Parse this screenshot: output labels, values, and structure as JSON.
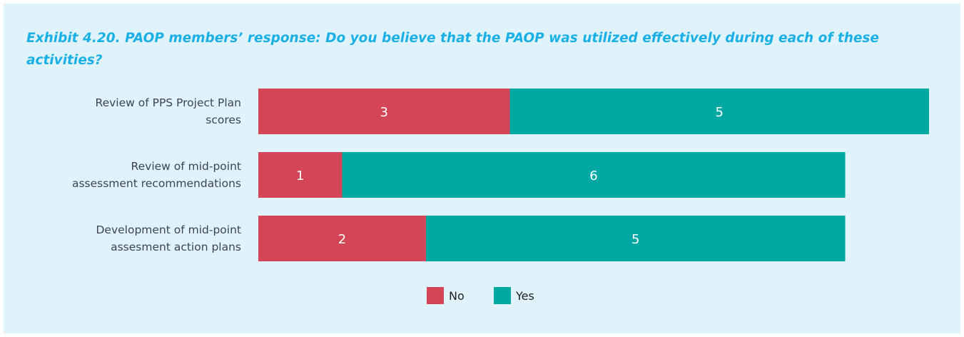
{
  "title": "Exhibit 4.20. PAOP members’ response: Do you believe that the PAOP was utilized effectively during each of these activities?",
  "colors": {
    "background": "#e0f3fb",
    "title": "#1ab0e6",
    "no": "#d44657",
    "yes": "#00a8a4"
  },
  "chart_data": {
    "type": "bar",
    "orientation": "horizontal",
    "stacked": true,
    "categories": [
      [
        "Review of PPS Project Plan",
        "scores"
      ],
      [
        "Review of  mid-point",
        "assessment recommendations"
      ],
      [
        "Development of mid-point",
        "assesment action plans"
      ]
    ],
    "series": [
      {
        "name": "No",
        "color": "#d44657",
        "values": [
          3,
          1,
          2
        ]
      },
      {
        "name": "Yes",
        "color": "#00a8a4",
        "values": [
          5,
          6,
          5
        ]
      }
    ],
    "data_labels": true,
    "legend": "bottom-center",
    "xlim": [
      0,
      8
    ],
    "grid": false,
    "axes_visible": false
  }
}
